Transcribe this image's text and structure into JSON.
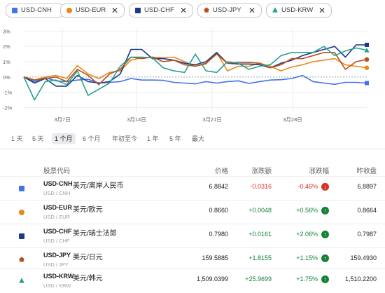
{
  "chips": [
    {
      "label": "USD-CNH",
      "color": "#4472e8",
      "shape": "square",
      "close": ""
    },
    {
      "label": "USD-EUR",
      "color": "#e8891a",
      "shape": "circle",
      "close": "✕"
    },
    {
      "label": "USD-CHF",
      "color": "#1a3a8c",
      "shape": "square-dark",
      "close": "✕"
    },
    {
      "label": "USD-JPY",
      "color": "#b5501b",
      "shape": "pentagon",
      "close": "✕"
    },
    {
      "label": "USD-KRW",
      "color": "#26a08c",
      "shape": "triangle",
      "close": "✕"
    }
  ],
  "ranges": [
    {
      "label": "1 天",
      "active": false
    },
    {
      "label": "5 天",
      "active": false
    },
    {
      "label": "1 个月",
      "active": true
    },
    {
      "label": "6 个月",
      "active": false
    },
    {
      "label": "年初至今",
      "active": false
    },
    {
      "label": "1 年",
      "active": false
    },
    {
      "label": "5 年",
      "active": false
    },
    {
      "label": "最大",
      "active": false
    }
  ],
  "table": {
    "headers": {
      "symbol": "股票代码",
      "price": "价格",
      "change": "涨跌额",
      "change_pct": "涨跌幅",
      "prev_close": "昨收盘"
    },
    "rows": [
      {
        "code": "USD-CNH",
        "name": "美元/离岸人民币",
        "sub": "USD / CNH",
        "price": "6.8842",
        "change": "-0.0316",
        "change_pct": "-0.46%",
        "dir": "down",
        "prev_close": "6.8897",
        "color": "#4472e8"
      },
      {
        "code": "USD-EUR",
        "name": "美元/欧元",
        "sub": "USD / EUR",
        "price": "0.8660",
        "change": "+0.0048",
        "change_pct": "+0.56%",
        "dir": "up",
        "prev_close": "0.8664",
        "color": "#e8891a"
      },
      {
        "code": "USD-CHF",
        "name": "美元/瑞士法郎",
        "sub": "USD / CHF",
        "price": "0.7980",
        "change": "+0.0161",
        "change_pct": "+2.06%",
        "dir": "up",
        "prev_close": "0.7987",
        "color": "#1a3a8c"
      },
      {
        "code": "USD-JPY",
        "name": "美元/日元",
        "sub": "USD / JPY",
        "price": "159.5885",
        "change": "+1.8155",
        "change_pct": "+1.15%",
        "dir": "up",
        "prev_close": "159.4930",
        "color": "#b5501b"
      },
      {
        "code": "USD-KRW",
        "name": "美元/韩元",
        "sub": "USD / KRW",
        "price": "1,509.0399",
        "change": "+25.9699",
        "change_pct": "+1.75%",
        "dir": "up",
        "prev_close": "1,510.2200",
        "color": "#26a08c"
      }
    ]
  },
  "icons": {
    "up": "arrow-up-icon",
    "down": "arrow-down-icon"
  },
  "chart_data": {
    "type": "line",
    "y_ticks": [
      "3%",
      "2%",
      "1%",
      "0%",
      "-1%",
      "-2%"
    ],
    "y_values": [
      3,
      2,
      1,
      0,
      -1,
      -2
    ],
    "ylim": [
      -2.3,
      3.2
    ],
    "xlim": [
      0,
      28
    ],
    "x_ticks": [
      {
        "label": "3月7日",
        "x": 5
      },
      {
        "label": "3月14日",
        "x": 12
      },
      {
        "label": "3月21日",
        "x": 19
      },
      {
        "label": "3月28日",
        "x": 26
      }
    ],
    "zero_line": "dashed",
    "series": [
      {
        "code": "USD-CNH",
        "color": "#4472e8",
        "marker": "square",
        "values": [
          [
            0,
            0
          ],
          [
            1,
            -0.3
          ],
          [
            2,
            -0.05
          ],
          [
            3,
            -0.25
          ],
          [
            4,
            -0.3
          ],
          [
            5,
            -0.2
          ],
          [
            6,
            -0.15
          ],
          [
            7,
            -0.4
          ],
          [
            8,
            -0.35
          ],
          [
            9,
            -0.3
          ],
          [
            10,
            -0.1
          ],
          [
            11,
            -0.2
          ],
          [
            12,
            -0.2
          ],
          [
            13,
            -0.22
          ],
          [
            14,
            -0.35
          ],
          [
            15,
            -0.4
          ],
          [
            16,
            -0.45
          ],
          [
            17,
            -0.3
          ],
          [
            18,
            -0.4
          ],
          [
            19,
            -0.3
          ],
          [
            20,
            -0.25
          ],
          [
            21,
            -0.42
          ],
          [
            22,
            -0.3
          ],
          [
            23,
            -0.2
          ],
          [
            24,
            -0.18
          ],
          [
            25,
            -0.1
          ],
          [
            26,
            0.1
          ],
          [
            27,
            -0.3
          ],
          [
            28,
            -0.4
          ],
          [
            29,
            -0.48
          ],
          [
            30,
            -0.35
          ],
          [
            31,
            -0.35
          ],
          [
            32,
            -0.4
          ]
        ]
      },
      {
        "code": "USD-EUR",
        "color": "#e8891a",
        "marker": "circle",
        "values": [
          [
            0,
            0
          ],
          [
            1,
            -0.2
          ],
          [
            2,
            0
          ],
          [
            3,
            0.1
          ],
          [
            4,
            -0.1
          ],
          [
            5,
            0.75
          ],
          [
            6,
            0.2
          ],
          [
            7,
            -0.1
          ],
          [
            8,
            0.3
          ],
          [
            9,
            0.4
          ],
          [
            10,
            1.1
          ],
          [
            11,
            1.25
          ],
          [
            12,
            1.3
          ],
          [
            13,
            1.25
          ],
          [
            14,
            1.3
          ],
          [
            15,
            1.0
          ],
          [
            16,
            0.7
          ],
          [
            17,
            0.85
          ],
          [
            18,
            1.6
          ],
          [
            19,
            0.4
          ],
          [
            20,
            0.7
          ],
          [
            21,
            0.7
          ],
          [
            22,
            0.9
          ],
          [
            23,
            0.7
          ],
          [
            24,
            0.4
          ],
          [
            25,
            0.65
          ],
          [
            26,
            0.8
          ],
          [
            27,
            1.0
          ],
          [
            28,
            1.1
          ],
          [
            29,
            1.2
          ],
          [
            30,
            0.8
          ],
          [
            31,
            0.7
          ],
          [
            32,
            0.6
          ]
        ]
      },
      {
        "code": "USD-CHF",
        "color": "#1a3a8c",
        "marker": "square",
        "values": [
          [
            0,
            0
          ],
          [
            1,
            -0.4
          ],
          [
            2,
            -0.1
          ],
          [
            3,
            -0.6
          ],
          [
            4,
            -0.6
          ],
          [
            5,
            0.1
          ],
          [
            6,
            -0.3
          ],
          [
            7,
            -0.4
          ],
          [
            8,
            -0.3
          ],
          [
            9,
            0.2
          ],
          [
            10,
            1.8
          ],
          [
            11,
            1.8
          ],
          [
            12,
            1.2
          ],
          [
            13,
            1.2
          ],
          [
            14,
            1.1
          ],
          [
            15,
            0.9
          ],
          [
            16,
            0.8
          ],
          [
            17,
            1.0
          ],
          [
            18,
            1.6
          ],
          [
            19,
            0.9
          ],
          [
            20,
            0.85
          ],
          [
            21,
            0.85
          ],
          [
            22,
            0.8
          ],
          [
            23,
            0.6
          ],
          [
            24,
            0.9
          ],
          [
            25,
            1.1
          ],
          [
            26,
            1.4
          ],
          [
            27,
            1.6
          ],
          [
            28,
            1.8
          ],
          [
            29,
            2.0
          ],
          [
            30,
            1.3
          ],
          [
            31,
            2.1
          ],
          [
            32,
            2.1
          ]
        ]
      },
      {
        "code": "USD-JPY",
        "color": "#b5501b",
        "marker": "pentagon",
        "values": [
          [
            0,
            0
          ],
          [
            1,
            -0.2
          ],
          [
            2,
            -0.1
          ],
          [
            3,
            0
          ],
          [
            4,
            -0.3
          ],
          [
            5,
            0.5
          ],
          [
            6,
            0.1
          ],
          [
            7,
            -0.5
          ],
          [
            8,
            0.2
          ],
          [
            9,
            0.5
          ],
          [
            10,
            1.3
          ],
          [
            11,
            1.2
          ],
          [
            12,
            1.3
          ],
          [
            13,
            1.0
          ],
          [
            14,
            1.1
          ],
          [
            15,
            0.8
          ],
          [
            16,
            0.7
          ],
          [
            17,
            0.9
          ],
          [
            18,
            1.5
          ],
          [
            19,
            0.9
          ],
          [
            20,
            0.95
          ],
          [
            21,
            0.95
          ],
          [
            22,
            0.9
          ],
          [
            23,
            0.6
          ],
          [
            24,
            0.8
          ],
          [
            25,
            1.2
          ],
          [
            26,
            1.2
          ],
          [
            27,
            1.4
          ],
          [
            28,
            1.6
          ],
          [
            29,
            1.6
          ],
          [
            30,
            0.5
          ],
          [
            31,
            1.0
          ],
          [
            32,
            1.15
          ]
        ]
      },
      {
        "code": "USD-KRW",
        "color": "#26a08c",
        "marker": "triangle",
        "values": [
          [
            0,
            0
          ],
          [
            1,
            -1.5
          ],
          [
            2,
            -0.3
          ],
          [
            3,
            -0.2
          ],
          [
            4,
            -0.5
          ],
          [
            5,
            0.4
          ],
          [
            6,
            -1.2
          ],
          [
            7,
            -0.8
          ],
          [
            8,
            -0.4
          ],
          [
            9,
            0.7
          ],
          [
            10,
            1.3
          ],
          [
            11,
            1.3
          ],
          [
            12,
            1.25
          ],
          [
            13,
            0.6
          ],
          [
            14,
            0.4
          ],
          [
            15,
            0.3
          ],
          [
            16,
            1.5
          ],
          [
            17,
            0.4
          ],
          [
            18,
            0.3
          ],
          [
            19,
            1.0
          ],
          [
            20,
            0.9
          ],
          [
            21,
            0.5
          ],
          [
            22,
            0.7
          ],
          [
            23,
            0.8
          ],
          [
            24,
            1.4
          ],
          [
            25,
            1.6
          ],
          [
            26,
            1.6
          ],
          [
            27,
            1.6
          ],
          [
            28,
            2.0
          ],
          [
            29,
            1.4
          ],
          [
            30,
            1.7
          ],
          [
            31,
            1.9
          ],
          [
            32,
            1.75
          ]
        ]
      }
    ]
  }
}
